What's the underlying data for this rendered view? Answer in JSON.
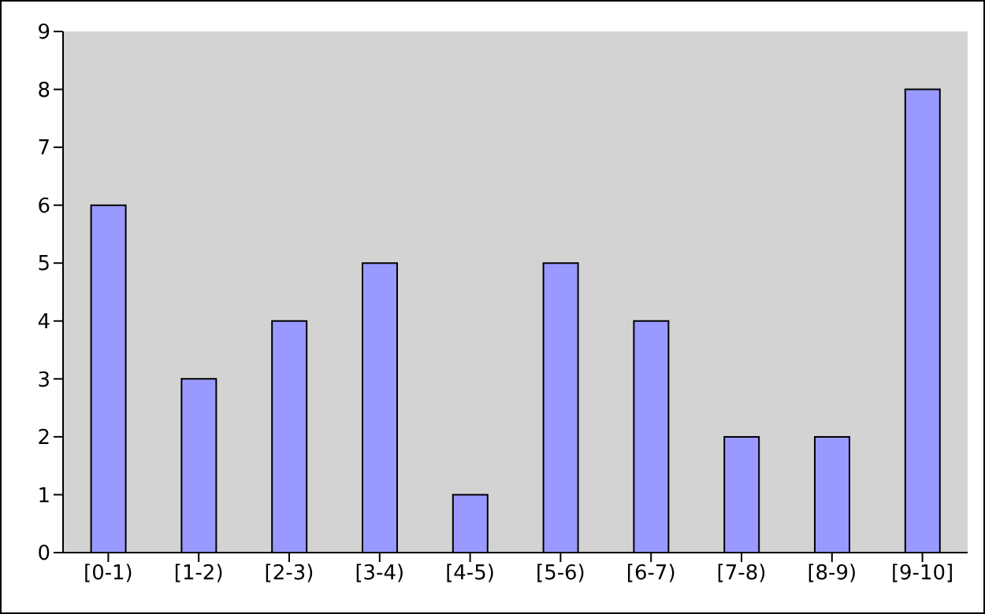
{
  "chart_data": {
    "type": "bar",
    "categories": [
      "[0-1)",
      "[1-2)",
      "[2-3)",
      "[3-4)",
      "[4-5)",
      "[5-6)",
      "[6-7)",
      "[7-8)",
      "[8-9)",
      "[9-10]"
    ],
    "values": [
      6,
      3,
      4,
      5,
      1,
      5,
      4,
      2,
      2,
      8
    ],
    "color": "#9999ff",
    "ylim": [
      0,
      9
    ],
    "yticks": [
      0,
      1,
      2,
      3,
      4,
      5,
      6,
      7,
      8,
      9
    ],
    "grid": false,
    "legend": false
  }
}
